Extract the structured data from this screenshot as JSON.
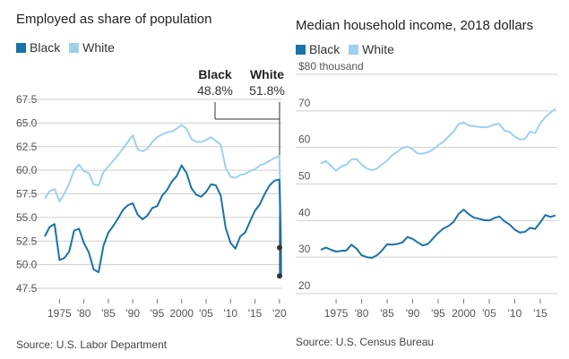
{
  "colors": {
    "black_series": "#1a73a8",
    "white_series": "#9fd0ec",
    "grid": "#cfcfcf",
    "axis_text": "#555555"
  },
  "charts": [
    {
      "title": "Employed as share of population",
      "legend": [
        {
          "label": "Black",
          "color": "#1a73a8"
        },
        {
          "label": "White",
          "color": "#9fd0ec"
        }
      ],
      "callout": {
        "black_label": "Black",
        "black_value": "48.8%",
        "white_label": "White",
        "white_value": "51.8%"
      },
      "source": "Source: U.S. Labor Department"
    },
    {
      "title": "Median household income, 2018 dollars",
      "legend": [
        {
          "label": "Black",
          "color": "#1a73a8"
        },
        {
          "label": "White",
          "color": "#9fd0ec"
        }
      ],
      "unit_label": "$80 thousand",
      "source": "Source: U.S. Census Bureau"
    }
  ],
  "chart_data": [
    {
      "type": "line",
      "title": "Employed as share of population",
      "y_unit": "percent",
      "ylim": [
        47.5,
        67.5
      ],
      "yticks": [
        "67.5",
        "65.0",
        "62.5",
        "60.0",
        "57.5",
        "55.0",
        "52.5",
        "50.0",
        "47.5"
      ],
      "ytick_values": [
        67.5,
        65.0,
        62.5,
        60.0,
        57.5,
        55.0,
        52.5,
        50.0,
        47.5
      ],
      "xlim": [
        1972,
        2020.4
      ],
      "xticks": [
        "1975",
        "'80",
        "'85",
        "'90",
        "'95",
        "2000",
        "'05",
        "'10",
        "'15",
        "'20"
      ],
      "xtick_values": [
        1975,
        1980,
        1985,
        1990,
        1995,
        2000,
        2005,
        2010,
        2015,
        2020
      ],
      "grid": true,
      "series": [
        {
          "name": "Black",
          "x": [
            1972,
            1973,
            1974,
            1975,
            1976,
            1977,
            1978,
            1979,
            1980,
            1981,
            1982,
            1983,
            1984,
            1985,
            1986,
            1987,
            1988,
            1989,
            1990,
            1991,
            1992,
            1993,
            1994,
            1995,
            1996,
            1997,
            1998,
            1999,
            2000,
            2001,
            2002,
            2003,
            2004,
            2005,
            2006,
            2007,
            2008,
            2009,
            2010,
            2011,
            2012,
            2013,
            2014,
            2015,
            2016,
            2017,
            2018,
            2019,
            2020,
            2020.3,
            2020.35
          ],
          "y": [
            53.0,
            54.0,
            54.3,
            50.5,
            50.7,
            51.4,
            53.6,
            53.8,
            52.3,
            51.3,
            49.5,
            49.2,
            52.0,
            53.4,
            54.1,
            54.9,
            55.8,
            56.3,
            56.5,
            55.3,
            54.8,
            55.2,
            56.0,
            56.2,
            57.3,
            57.9,
            58.8,
            59.4,
            60.5,
            59.7,
            58.1,
            57.4,
            57.2,
            57.7,
            58.5,
            58.4,
            57.3,
            53.9,
            52.3,
            51.7,
            53.0,
            53.4,
            54.6,
            55.7,
            56.4,
            57.5,
            58.4,
            58.9,
            59.0,
            51.8,
            48.8
          ]
        },
        {
          "name": "White",
          "x": [
            1972,
            1973,
            1974,
            1975,
            1976,
            1977,
            1978,
            1979,
            1980,
            1981,
            1982,
            1983,
            1984,
            1985,
            1986,
            1987,
            1988,
            1989,
            1990,
            1991,
            1992,
            1993,
            1994,
            1995,
            1996,
            1997,
            1998,
            1999,
            2000,
            2001,
            2002,
            2003,
            2004,
            2005,
            2006,
            2007,
            2008,
            2009,
            2010,
            2011,
            2012,
            2013,
            2014,
            2015,
            2016,
            2017,
            2018,
            2019,
            2020,
            2020.3,
            2020.35
          ],
          "y": [
            57.0,
            57.8,
            58.0,
            56.7,
            57.5,
            58.6,
            60.0,
            60.6,
            59.9,
            59.7,
            58.5,
            58.4,
            59.8,
            60.4,
            61.0,
            61.6,
            62.3,
            63.0,
            63.7,
            62.2,
            62.0,
            62.3,
            63.0,
            63.5,
            63.8,
            64.0,
            64.1,
            64.4,
            64.8,
            64.4,
            63.3,
            63.0,
            63.0,
            63.2,
            63.5,
            63.1,
            62.7,
            60.3,
            59.3,
            59.2,
            59.5,
            59.6,
            59.9,
            60.1,
            60.5,
            60.7,
            61.0,
            61.3,
            61.5,
            54.0,
            51.8
          ]
        }
      ],
      "annotations": [
        {
          "series": "Black",
          "value": "48.8%"
        },
        {
          "series": "White",
          "value": "51.8%"
        }
      ],
      "source": "Source: U.S. Labor Department"
    },
    {
      "type": "line",
      "title": "Median household income, 2018 dollars",
      "y_unit": "thousand 2018 dollars",
      "ylim": [
        20,
        80
      ],
      "yticks": [
        "$80 thousand",
        "70",
        "60",
        "50",
        "40",
        "30",
        "20"
      ],
      "ytick_values": [
        80,
        70,
        60,
        50,
        40,
        30,
        20
      ],
      "xlim": [
        1972,
        2018
      ],
      "xticks": [
        "1975",
        "'80",
        "'85",
        "'90",
        "'95",
        "2000",
        "'05",
        "'10",
        "'15"
      ],
      "xtick_values": [
        1975,
        1980,
        1985,
        1990,
        1995,
        2000,
        2005,
        2010,
        2015
      ],
      "grid": true,
      "series": [
        {
          "name": "Black",
          "x": [
            1972,
            1973,
            1974,
            1975,
            1976,
            1977,
            1978,
            1979,
            1980,
            1981,
            1982,
            1983,
            1984,
            1985,
            1986,
            1987,
            1988,
            1989,
            1990,
            1991,
            1992,
            1993,
            1994,
            1995,
            1996,
            1997,
            1998,
            1999,
            2000,
            2001,
            2002,
            2003,
            2004,
            2005,
            2006,
            2007,
            2008,
            2009,
            2010,
            2011,
            2012,
            2013,
            2014,
            2015,
            2016,
            2017,
            2018
          ],
          "y": [
            32.0,
            32.6,
            32.0,
            31.5,
            31.7,
            31.8,
            33.4,
            32.3,
            30.5,
            30.0,
            29.8,
            30.5,
            31.8,
            33.5,
            33.4,
            33.6,
            34.0,
            35.5,
            35.0,
            34.0,
            33.2,
            33.6,
            35.1,
            36.6,
            37.8,
            38.5,
            39.6,
            41.8,
            43.0,
            41.7,
            40.8,
            40.5,
            40.1,
            40.0,
            40.7,
            41.1,
            39.8,
            38.9,
            37.5,
            36.7,
            36.9,
            38.0,
            37.7,
            39.5,
            41.5,
            41.0,
            41.4
          ]
        },
        {
          "name": "White",
          "x": [
            1972,
            1973,
            1974,
            1975,
            1976,
            1977,
            1978,
            1979,
            1980,
            1981,
            1982,
            1983,
            1984,
            1985,
            1986,
            1987,
            1988,
            1989,
            1990,
            1991,
            1992,
            1993,
            1994,
            1995,
            1996,
            1997,
            1998,
            1999,
            2000,
            2001,
            2002,
            2003,
            2004,
            2005,
            2006,
            2007,
            2008,
            2009,
            2010,
            2011,
            2012,
            2013,
            2014,
            2015,
            2016,
            2017,
            2018
          ],
          "y": [
            55.6,
            56.3,
            55.0,
            53.6,
            54.8,
            55.3,
            56.7,
            56.8,
            55.3,
            54.2,
            53.8,
            54.2,
            55.4,
            56.4,
            57.9,
            58.8,
            59.9,
            60.2,
            59.5,
            58.3,
            58.3,
            58.7,
            59.4,
            60.6,
            61.5,
            62.9,
            64.3,
            66.4,
            66.8,
            66.0,
            65.8,
            65.6,
            65.5,
            65.7,
            66.3,
            66.4,
            64.6,
            64.2,
            63.0,
            62.2,
            62.3,
            64.3,
            63.9,
            66.6,
            68.3,
            69.5,
            70.6
          ]
        }
      ],
      "source": "Source: U.S. Census Bureau"
    }
  ]
}
